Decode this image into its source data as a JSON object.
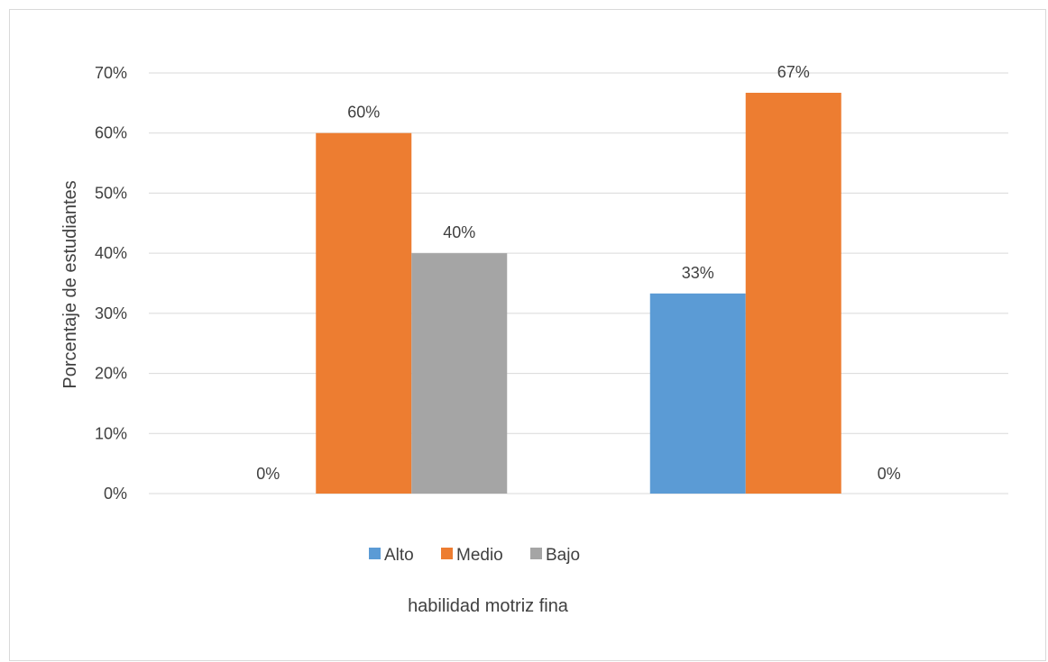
{
  "chart_data": {
    "type": "bar",
    "title": "",
    "xlabel": "habilidad motriz fina",
    "ylabel": "Porcentaje de estudiantes",
    "ylim": [
      0,
      0.7
    ],
    "yticks": [
      0,
      0.1,
      0.2,
      0.3,
      0.4,
      0.5,
      0.6,
      0.7
    ],
    "ytick_labels": [
      "0%",
      "10%",
      "20%",
      "30%",
      "40%",
      "50%",
      "60%",
      "70%"
    ],
    "categories": [
      "",
      ""
    ],
    "series": [
      {
        "name": "Alto",
        "color": "#5b9bd5",
        "values": [
          0,
          0.333
        ],
        "labels": [
          "0%",
          "33%"
        ]
      },
      {
        "name": "Medio",
        "color": "#ed7d31",
        "values": [
          0.6,
          0.667
        ],
        "labels": [
          "60%",
          "67%"
        ]
      },
      {
        "name": "Bajo",
        "color": "#a5a5a5",
        "values": [
          0.4,
          0
        ],
        "labels": [
          "40%",
          "0%"
        ]
      }
    ],
    "grid": true,
    "legend_position": "bottom"
  }
}
